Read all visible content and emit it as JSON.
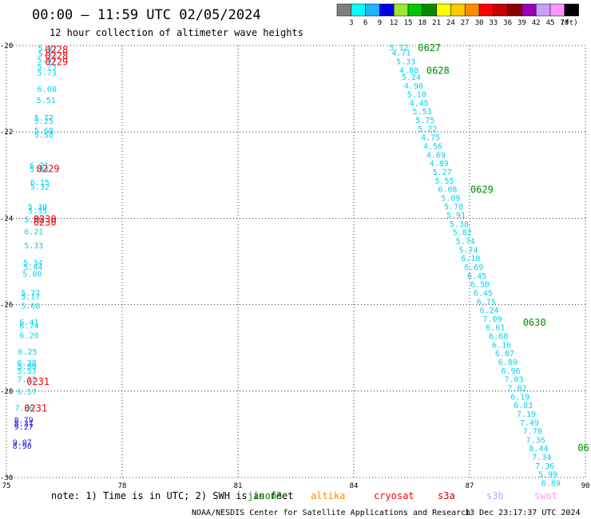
{
  "header": {
    "title": "00:00 — 11:59 UTC 02/05/2024",
    "subtitle": "12 hour collection of altimeter wave heights"
  },
  "colorbar": {
    "colors": [
      "#7f7f7f",
      "#00ffff",
      "#1eb4ff",
      "#0000e6",
      "#a0e632",
      "#00c800",
      "#008c00",
      "#ffff00",
      "#ffc800",
      "#ff8c00",
      "#ff0000",
      "#c80000",
      "#8c0000",
      "#9b00b4",
      "#c8a0ff",
      "#ff96ff",
      "#000000"
    ],
    "labels": [
      "3",
      "6",
      "9",
      "12",
      "15",
      "18",
      "21",
      "24",
      "27",
      "30",
      "33",
      "36",
      "39",
      "42",
      "45",
      "70"
    ],
    "unit": "(ft)"
  },
  "footer": {
    "note": "note:  1) Time is in UTC; 2) SWH is in feet",
    "satellites": [
      {
        "name": "jason3",
        "color": "#008c00"
      },
      {
        "name": "altika",
        "color": "#ff8c00"
      },
      {
        "name": "cryosat",
        "color": "#ff0000"
      },
      {
        "name": "s3a",
        "color": "#c80000"
      },
      {
        "name": "s3b",
        "color": "#c8a0ff"
      },
      {
        "name": "swot",
        "color": "#ff96ff"
      }
    ],
    "credit": "NOAA/NESDIS Center for Satellite Applications and Research",
    "timestamp": "13 Dec 23:17:37 UTC 2024"
  },
  "chart_data": {
    "type": "scatter",
    "title": "00:00 — 11:59 UTC 02/05/2024",
    "xlim": [
      75,
      90
    ],
    "ylim": [
      -30,
      -20
    ],
    "x_ticks": [
      "75",
      "78",
      "81",
      "84",
      "87",
      "90"
    ],
    "y_ticks": [
      "-20",
      "-22",
      "-24",
      "-26",
      "-28",
      "-30"
    ],
    "grid": true,
    "point_color": "#00d2f0",
    "point_color_dark": "#1e1ee6",
    "series": [
      {
        "points": [
          {
            "x": 75.82,
            "y": -20.06,
            "v": "5.87"
          },
          {
            "x": 75.82,
            "y": -20.18,
            "v": "5.32"
          },
          {
            "x": 75.8,
            "y": -20.32,
            "v": "5.67"
          },
          {
            "x": 75.8,
            "y": -20.48,
            "v": "5.73"
          },
          {
            "x": 75.8,
            "y": -20.62,
            "v": "5.73"
          },
          {
            "x": 75.8,
            "y": -21.0,
            "v": "6.08"
          },
          {
            "x": 75.78,
            "y": -21.26,
            "v": "5.51"
          },
          {
            "x": 75.72,
            "y": -21.66,
            "v": "5.77"
          },
          {
            "x": 75.72,
            "y": -21.74,
            "v": "5.25"
          },
          {
            "x": 75.72,
            "y": -21.96,
            "v": "5.68"
          },
          {
            "x": 75.72,
            "y": -22.06,
            "v": "5.58"
          },
          {
            "x": 75.6,
            "y": -22.76,
            "v": "6.21"
          },
          {
            "x": 75.6,
            "y": -22.86,
            "v": "5.64"
          },
          {
            "x": 75.62,
            "y": -23.16,
            "v": "6.15"
          },
          {
            "x": 75.62,
            "y": -23.26,
            "v": "5.32"
          },
          {
            "x": 75.56,
            "y": -23.72,
            "v": "5.30"
          },
          {
            "x": 75.56,
            "y": -23.82,
            "v": "5.35"
          },
          {
            "x": 75.46,
            "y": -24.02,
            "v": "5.76"
          },
          {
            "x": 75.46,
            "y": -24.3,
            "v": "6.21"
          },
          {
            "x": 75.46,
            "y": -24.62,
            "v": "5.33"
          },
          {
            "x": 75.44,
            "y": -25.02,
            "v": "5.34"
          },
          {
            "x": 75.44,
            "y": -25.12,
            "v": "5.44"
          },
          {
            "x": 75.42,
            "y": -25.28,
            "v": "5.00"
          },
          {
            "x": 75.38,
            "y": -25.72,
            "v": "5.77"
          },
          {
            "x": 75.38,
            "y": -25.8,
            "v": "5.17"
          },
          {
            "x": 75.38,
            "y": -26.02,
            "v": "5.68"
          },
          {
            "x": 75.34,
            "y": -26.4,
            "v": "6.41"
          },
          {
            "x": 75.34,
            "y": -26.48,
            "v": "6.74"
          },
          {
            "x": 75.34,
            "y": -26.7,
            "v": "6.20"
          },
          {
            "x": 75.3,
            "y": -27.08,
            "v": "6.25"
          },
          {
            "x": 75.28,
            "y": -27.34,
            "v": "6.38"
          },
          {
            "x": 75.28,
            "y": -27.42,
            "v": "5.99"
          },
          {
            "x": 75.28,
            "y": -27.52,
            "v": "5.53"
          },
          {
            "x": 75.28,
            "y": -27.72,
            "v": "7.12"
          },
          {
            "x": 75.28,
            "y": -28.0,
            "v": "6.57"
          },
          {
            "x": 75.22,
            "y": -28.38,
            "v": "7.86"
          },
          {
            "x": 75.2,
            "y": -28.66,
            "v": "8.79",
            "dark": true
          },
          {
            "x": 75.2,
            "y": -28.74,
            "v": "8.31",
            "dark": true
          },
          {
            "x": 75.2,
            "y": -28.82,
            "v": "9.27",
            "dark": true
          },
          {
            "x": 75.16,
            "y": -29.18,
            "v": "9.07",
            "dark": true
          },
          {
            "x": 75.16,
            "y": -29.26,
            "v": "8.90",
            "dark": true
          }
        ]
      },
      {
        "points": [
          {
            "x": 84.92,
            "y": -20.04,
            "v": "5.12"
          },
          {
            "x": 84.98,
            "y": -20.16,
            "v": "4.71"
          },
          {
            "x": 85.1,
            "y": -20.36,
            "v": "5.33"
          },
          {
            "x": 85.18,
            "y": -20.56,
            "v": "4.88"
          },
          {
            "x": 85.24,
            "y": -20.72,
            "v": "5.24"
          },
          {
            "x": 85.3,
            "y": -20.92,
            "v": "4.90"
          },
          {
            "x": 85.38,
            "y": -21.12,
            "v": "5.10"
          },
          {
            "x": 85.44,
            "y": -21.32,
            "v": "4.45"
          },
          {
            "x": 85.52,
            "y": -21.52,
            "v": "5.53"
          },
          {
            "x": 85.6,
            "y": -21.72,
            "v": "5.75"
          },
          {
            "x": 85.66,
            "y": -21.92,
            "v": "5.22"
          },
          {
            "x": 85.74,
            "y": -22.12,
            "v": "4.75"
          },
          {
            "x": 85.8,
            "y": -22.32,
            "v": "4.56"
          },
          {
            "x": 85.88,
            "y": -22.52,
            "v": "4.69"
          },
          {
            "x": 85.96,
            "y": -22.72,
            "v": "4.89"
          },
          {
            "x": 86.04,
            "y": -22.92,
            "v": "5.27"
          },
          {
            "x": 86.1,
            "y": -23.12,
            "v": "5.55"
          },
          {
            "x": 86.18,
            "y": -23.32,
            "v": "6.08"
          },
          {
            "x": 86.26,
            "y": -23.52,
            "v": "5.09"
          },
          {
            "x": 86.34,
            "y": -23.72,
            "v": "5.78"
          },
          {
            "x": 86.4,
            "y": -23.92,
            "v": "5.91"
          },
          {
            "x": 86.48,
            "y": -24.12,
            "v": "5.38"
          },
          {
            "x": 86.56,
            "y": -24.32,
            "v": "5.82"
          },
          {
            "x": 86.64,
            "y": -24.52,
            "v": "5.74"
          },
          {
            "x": 86.72,
            "y": -24.72,
            "v": "5.74"
          },
          {
            "x": 86.78,
            "y": -24.92,
            "v": "6.10"
          },
          {
            "x": 86.86,
            "y": -25.12,
            "v": "6.69"
          },
          {
            "x": 86.94,
            "y": -25.32,
            "v": "6.45"
          },
          {
            "x": 87.02,
            "y": -25.52,
            "v": "6.50"
          },
          {
            "x": 87.1,
            "y": -25.72,
            "v": "6.45"
          },
          {
            "x": 87.18,
            "y": -25.92,
            "v": "6.75"
          },
          {
            "x": 87.26,
            "y": -26.12,
            "v": "6.24"
          },
          {
            "x": 87.34,
            "y": -26.32,
            "v": "7.09"
          },
          {
            "x": 87.42,
            "y": -26.52,
            "v": "6.61"
          },
          {
            "x": 87.5,
            "y": -26.72,
            "v": "6.68"
          },
          {
            "x": 87.58,
            "y": -26.92,
            "v": "6.16"
          },
          {
            "x": 87.66,
            "y": -27.12,
            "v": "6.87"
          },
          {
            "x": 87.74,
            "y": -27.32,
            "v": "6.89"
          },
          {
            "x": 87.82,
            "y": -27.52,
            "v": "6.96"
          },
          {
            "x": 87.9,
            "y": -27.72,
            "v": "7.03"
          },
          {
            "x": 87.98,
            "y": -27.92,
            "v": "7.02"
          },
          {
            "x": 88.06,
            "y": -28.12,
            "v": "6.19"
          },
          {
            "x": 88.14,
            "y": -28.32,
            "v": "6.83"
          },
          {
            "x": 88.22,
            "y": -28.52,
            "v": "7.19"
          },
          {
            "x": 88.3,
            "y": -28.72,
            "v": "7.49"
          },
          {
            "x": 88.38,
            "y": -28.92,
            "v": "7.70"
          },
          {
            "x": 88.46,
            "y": -29.12,
            "v": "7.36"
          },
          {
            "x": 88.54,
            "y": -29.32,
            "v": "8.44"
          },
          {
            "x": 88.62,
            "y": -29.52,
            "v": "7.34"
          },
          {
            "x": 88.7,
            "y": -29.72,
            "v": "7.36"
          },
          {
            "x": 88.78,
            "y": -29.92,
            "v": "5.99"
          },
          {
            "x": 88.86,
            "y": -30.12,
            "v": "6.89"
          }
        ]
      }
    ],
    "pass_labels": [
      {
        "text": "0228",
        "x": 76.0,
        "y": -20.08,
        "color": "#ff0000"
      },
      {
        "text": "0228",
        "x": 76.0,
        "y": -20.22,
        "color": "#ff0000"
      },
      {
        "text": "0229",
        "x": 76.0,
        "y": -20.36,
        "color": "#ff0000"
      },
      {
        "text": "0229",
        "x": 75.78,
        "y": -22.84,
        "color": "#ff0000"
      },
      {
        "text": "0230",
        "x": 75.7,
        "y": -24.0,
        "color": "#ff0000"
      },
      {
        "text": "0230",
        "x": 75.7,
        "y": -24.08,
        "color": "#ff0000"
      },
      {
        "text": "0231",
        "x": 75.52,
        "y": -27.76,
        "color": "#ff0000"
      },
      {
        "text": "0231",
        "x": 75.46,
        "y": -28.38,
        "color": "#ff0000"
      },
      {
        "text": "0627",
        "x": 85.66,
        "y": -20.04,
        "color": "#008c00"
      },
      {
        "text": "0628",
        "x": 85.88,
        "y": -20.56,
        "color": "#008c00"
      },
      {
        "text": "0629",
        "x": 87.02,
        "y": -23.32,
        "color": "#008c00"
      },
      {
        "text": "0630",
        "x": 88.38,
        "y": -26.4,
        "color": "#008c00"
      },
      {
        "text": "06",
        "x": 89.8,
        "y": -29.3,
        "color": "#008c00"
      }
    ]
  }
}
